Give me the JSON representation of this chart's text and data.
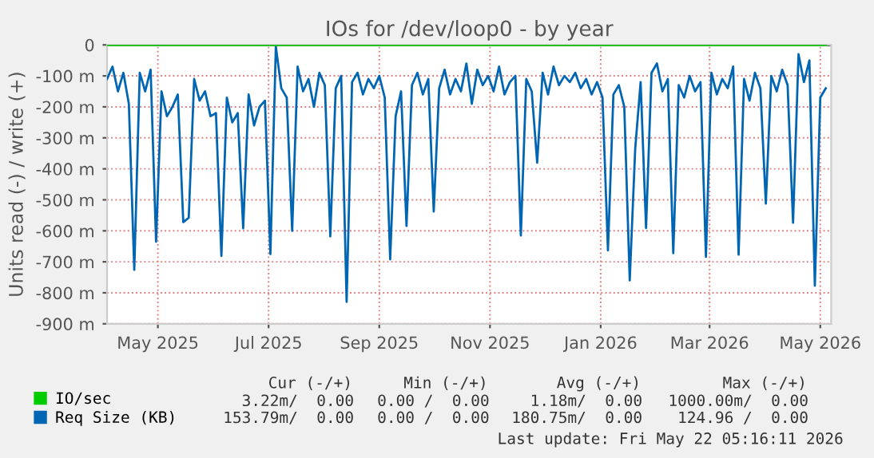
{
  "chart_data": {
    "type": "line",
    "title": "IOs for /dev/loop0 - by year",
    "ylabel": "Units read (-) / write (+)",
    "x": [
      "2025-04-18",
      "2025-04-21",
      "2025-04-24",
      "2025-04-27",
      "2025-04-30",
      "2025-05-03",
      "2025-05-06",
      "2025-05-09",
      "2025-05-12",
      "2025-05-15",
      "2025-05-18",
      "2025-05-21",
      "2025-05-24",
      "2025-05-27",
      "2025-05-30",
      "2025-06-02",
      "2025-06-05",
      "2025-06-08",
      "2025-06-11",
      "2025-06-14",
      "2025-06-17",
      "2025-06-20",
      "2025-06-23",
      "2025-06-26",
      "2025-06-29",
      "2025-07-02",
      "2025-07-05",
      "2025-07-08",
      "2025-07-11",
      "2025-07-14",
      "2025-07-17",
      "2025-07-20",
      "2025-07-23",
      "2025-07-26",
      "2025-07-29",
      "2025-08-01",
      "2025-08-04",
      "2025-08-07",
      "2025-08-10",
      "2025-08-13",
      "2025-08-16",
      "2025-08-19",
      "2025-08-22",
      "2025-08-25",
      "2025-08-28",
      "2025-08-31",
      "2025-09-03",
      "2025-09-06",
      "2025-09-09",
      "2025-09-12",
      "2025-09-15",
      "2025-09-18",
      "2025-09-21",
      "2025-09-24",
      "2025-09-27",
      "2025-09-30",
      "2025-10-03",
      "2025-10-06",
      "2025-10-09",
      "2025-10-12",
      "2025-10-15",
      "2025-10-18",
      "2025-10-21",
      "2025-10-24",
      "2025-10-27",
      "2025-10-30",
      "2025-11-02",
      "2025-11-05",
      "2025-11-08",
      "2025-11-11",
      "2025-11-14",
      "2025-11-17",
      "2025-11-20",
      "2025-11-23",
      "2025-11-26",
      "2025-11-29",
      "2025-12-02",
      "2025-12-05",
      "2025-12-08",
      "2025-12-11",
      "2025-12-14",
      "2025-12-17",
      "2025-12-20",
      "2025-12-23",
      "2025-12-26",
      "2025-12-29",
      "2026-01-01",
      "2026-01-04",
      "2026-01-07",
      "2026-01-10",
      "2026-01-13",
      "2026-01-16",
      "2026-01-19",
      "2026-01-22",
      "2026-01-25",
      "2026-01-28",
      "2026-01-31",
      "2026-02-03",
      "2026-02-06",
      "2026-02-09",
      "2026-02-12",
      "2026-02-15",
      "2026-02-18",
      "2026-02-21",
      "2026-02-24",
      "2026-02-27",
      "2026-03-02",
      "2026-03-05",
      "2026-03-08",
      "2026-03-11",
      "2026-03-14",
      "2026-03-17",
      "2026-03-20",
      "2026-03-23",
      "2026-03-26",
      "2026-03-29",
      "2026-04-01",
      "2026-04-04",
      "2026-04-07",
      "2026-04-10",
      "2026-04-13",
      "2026-04-16",
      "2026-04-19",
      "2026-04-22",
      "2026-04-25",
      "2026-04-28",
      "2026-05-01",
      "2026-05-04",
      "2026-05-07",
      "2026-05-10",
      "2026-05-13",
      "2026-05-16",
      "2026-05-19"
    ],
    "series": [
      {
        "name": "IO/sec",
        "color": "#00cc00",
        "x": [
          "2025-04-18",
          "2026-05-19"
        ],
        "values": [
          0,
          0
        ]
      },
      {
        "name": "Req Size (KB)",
        "color": "#0066b3",
        "values": [
          -110,
          -70,
          -150,
          -90,
          -190,
          -726,
          -90,
          -150,
          -80,
          -635,
          -150,
          -230,
          -200,
          -160,
          -572,
          -558,
          -110,
          -180,
          -150,
          -230,
          -220,
          -681,
          -170,
          -250,
          -220,
          -592,
          -160,
          -260,
          -200,
          -180,
          -675,
          -5,
          -140,
          -170,
          -600,
          -70,
          -150,
          -110,
          -200,
          -90,
          -130,
          -618,
          -140,
          -100,
          -829,
          -120,
          -90,
          -160,
          -110,
          -140,
          -100,
          -170,
          -692,
          -230,
          -150,
          -584,
          -130,
          -90,
          -160,
          -110,
          -538,
          -140,
          -80,
          -160,
          -110,
          -150,
          -60,
          -190,
          -80,
          -130,
          -100,
          -150,
          -70,
          -160,
          -120,
          -100,
          -615,
          -110,
          -150,
          -380,
          -90,
          -160,
          -70,
          -130,
          -100,
          -120,
          -90,
          -140,
          -110,
          -160,
          -120,
          -170,
          -663,
          -160,
          -130,
          -200,
          -760,
          -337,
          -120,
          -591,
          -90,
          -60,
          -150,
          -110,
          -672,
          -130,
          -170,
          -100,
          -150,
          -120,
          -684,
          -90,
          -160,
          -110,
          -140,
          -70,
          -677,
          -110,
          -180,
          -90,
          -140,
          -512,
          -100,
          -150,
          -80,
          -130,
          -574,
          -30,
          -120,
          -50,
          -777,
          -170,
          -140
        ]
      }
    ],
    "xlim": [
      "2025-04-18",
      "2026-05-22"
    ],
    "xticks": [
      {
        "value": "2025-05-16",
        "label": "May 2025"
      },
      {
        "value": "2025-07-16",
        "label": "Jul 2025"
      },
      {
        "value": "2025-09-15",
        "label": "Sep 2025"
      },
      {
        "value": "2025-11-15",
        "label": "Nov 2025"
      },
      {
        "value": "2026-01-15",
        "label": "Jan 2026"
      },
      {
        "value": "2026-03-16",
        "label": "Mar 2026"
      },
      {
        "value": "2026-05-16",
        "label": "May 2026"
      }
    ],
    "ylim": [
      -900,
      0
    ],
    "yticks": [
      {
        "value": -900,
        "label": "-900 m"
      },
      {
        "value": -800,
        "label": "-800 m"
      },
      {
        "value": -700,
        "label": "-700 m"
      },
      {
        "value": -600,
        "label": "-600 m"
      },
      {
        "value": -500,
        "label": "-500 m"
      },
      {
        "value": -400,
        "label": "-400 m"
      },
      {
        "value": -300,
        "label": "-300 m"
      },
      {
        "value": -200,
        "label": "-200 m"
      },
      {
        "value": -100,
        "label": "-100 m"
      },
      0
    ],
    "ref_lines": [
      {
        "axis": "y",
        "value": 0,
        "color": "#000000"
      }
    ],
    "grid": true,
    "legend": "bottom left",
    "marker": "none",
    "line_style": "solid",
    "annotations": [
      "Cur (-/+)",
      "Min (-/+)",
      "Avg (-/+)",
      "Max (-/+)",
      "3.22m/  0.00",
      "0.00 /  0.00",
      "1.18m/  0.00",
      "1000.00m/  0.00",
      "153.79m/  0.00",
      "0.00 /  0.00",
      "180.75m/  0.00",
      "124.96 /  0.00",
      "Last update: Fri May 22 05:16:11 2026"
    ]
  }
}
